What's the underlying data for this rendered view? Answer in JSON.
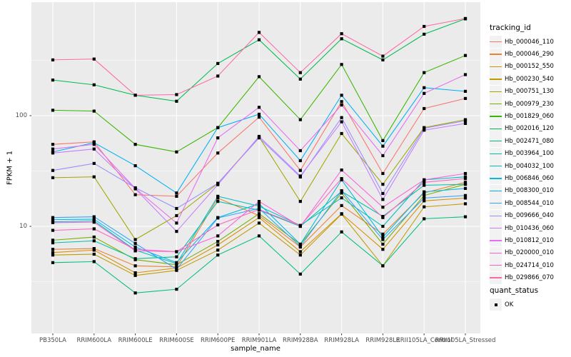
{
  "chart_data": {
    "type": "line",
    "title": "",
    "x_axis": {
      "title": "sample_name",
      "categories": [
        "PB350LA",
        "RRIM600LA",
        "RRIM600LE",
        "RRIM600SE",
        "RRIM600PE",
        "RRIM901LA",
        "RRIM928BA",
        "RRIM928LA",
        "RRIM928LE",
        "RRII105LA_Control",
        "RRII105LA_Stressed"
      ]
    },
    "y_axis": {
      "title": "FPKM + 1",
      "scale": "log10",
      "ticks": [
        10,
        100
      ],
      "tick_labels": [
        "10",
        "100"
      ],
      "minor_gridlines": [
        3.162,
        31.623,
        316.228
      ],
      "range": [
        1.09,
        1060
      ]
    },
    "legend": {
      "title": "tracking_id",
      "position": "right"
    },
    "point_legend": {
      "title": "quant_status",
      "items": [
        {
          "label": "OK",
          "marker": "black-square"
        }
      ]
    },
    "panel": {
      "background": "#EBEBEB",
      "gridline_color": "#FFFFFF",
      "point_color": "#000000"
    },
    "series": [
      {
        "name": "Hb_000046_110",
        "color": "#F8766D",
        "values": [
          55,
          58,
          19.3,
          18.7,
          46,
          97,
          32,
          134,
          30,
          116,
          143
        ]
      },
      {
        "name": "Hb_000046_290",
        "color": "#EA8331",
        "values": [
          6.2,
          6.3,
          4.4,
          4.3,
          18,
          12.5,
          6.5,
          15.4,
          8.5,
          20,
          25
        ]
      },
      {
        "name": "Hb_000152_550",
        "color": "#D89000",
        "values": [
          5.8,
          6.1,
          3.8,
          4.2,
          6.8,
          12,
          5.9,
          13,
          6.2,
          17,
          18
        ]
      },
      {
        "name": "Hb_000230_540",
        "color": "#C09B00",
        "values": [
          5.5,
          5.6,
          3.6,
          4.0,
          6.1,
          10.7,
          5.5,
          12.9,
          4.4,
          15,
          16
        ]
      },
      {
        "name": "Hb_000751_130",
        "color": "#A3A500",
        "values": [
          27.5,
          28,
          7.6,
          12.5,
          24.4,
          64,
          16.8,
          69,
          24,
          78,
          92
        ]
      },
      {
        "name": "Hb_000979_230",
        "color": "#7CAE00",
        "values": [
          7.5,
          8,
          5.0,
          4.5,
          7.3,
          13,
          6.9,
          20,
          6.9,
          19,
          24
        ]
      },
      {
        "name": "Hb_001829_060",
        "color": "#39B600",
        "values": [
          112,
          110,
          55,
          47,
          78,
          225,
          92,
          290,
          59.5,
          245,
          350
        ]
      },
      {
        "name": "Hb_002016_120",
        "color": "#00BB4E",
        "values": [
          210,
          190,
          153,
          135,
          296,
          485,
          214,
          495,
          319,
          545,
          750
        ]
      },
      {
        "name": "Hb_002471_080",
        "color": "#00BF7D",
        "values": [
          4.7,
          4.8,
          2.5,
          2.7,
          5.5,
          8.2,
          3.7,
          8.9,
          4.4,
          11.7,
          12.2
        ]
      },
      {
        "name": "Hb_003964_100",
        "color": "#00C1A3",
        "values": [
          7.1,
          7.4,
          5.1,
          5.3,
          16.8,
          14,
          10,
          20.7,
          12.3,
          23.5,
          24
        ]
      },
      {
        "name": "Hb_004032_100",
        "color": "#00BFC4",
        "values": [
          11,
          11.2,
          6.1,
          4.6,
          18.7,
          15.2,
          10.2,
          18.1,
          10,
          26.3,
          28
        ]
      },
      {
        "name": "Hb_006846_060",
        "color": "#00BAE0",
        "values": [
          11.5,
          11.6,
          6.5,
          4.7,
          12,
          16,
          6.9,
          26.3,
          8,
          20.5,
          22
        ]
      },
      {
        "name": "Hb_008300_010",
        "color": "#00B0F6",
        "values": [
          47,
          57,
          35.3,
          20,
          78,
          103,
          39.2,
          153,
          53,
          179,
          166
        ]
      },
      {
        "name": "Hb_008544_010",
        "color": "#35A2FF",
        "values": [
          12,
          12.2,
          7,
          4.1,
          11.9,
          14.5,
          6.6,
          21,
          7.6,
          18,
          19
        ]
      },
      {
        "name": "Hb_009666_040",
        "color": "#9590FF",
        "values": [
          32,
          37,
          22.3,
          14.5,
          24.5,
          63,
          27.9,
          96,
          19.8,
          77,
          90
        ]
      },
      {
        "name": "Hb_010436_060",
        "color": "#C77CFF",
        "values": [
          46,
          50,
          21.8,
          9,
          23.8,
          65,
          28.5,
          88,
          17.5,
          74,
          85
        ]
      },
      {
        "name": "Hb_010812_010",
        "color": "#E76BF3",
        "values": [
          50,
          55,
          22,
          10.7,
          63,
          119,
          48.3,
          125,
          43.5,
          159,
          235
        ]
      },
      {
        "name": "Hb_020000_010",
        "color": "#FA62DB",
        "values": [
          10.8,
          10.9,
          6,
          5.9,
          8.2,
          16.8,
          10,
          32.3,
          14.9,
          26.3,
          30
        ]
      },
      {
        "name": "Hb_024714_010",
        "color": "#FF61C3",
        "values": [
          9.2,
          9.5,
          6.2,
          5.9,
          10.3,
          14.2,
          10.1,
          27,
          12,
          25,
          27
        ]
      },
      {
        "name": "Hb_029866_070",
        "color": "#FF67A4",
        "values": [
          319,
          325,
          153,
          155,
          228,
          565,
          245,
          550,
          345,
          640,
          755
        ]
      }
    ]
  }
}
